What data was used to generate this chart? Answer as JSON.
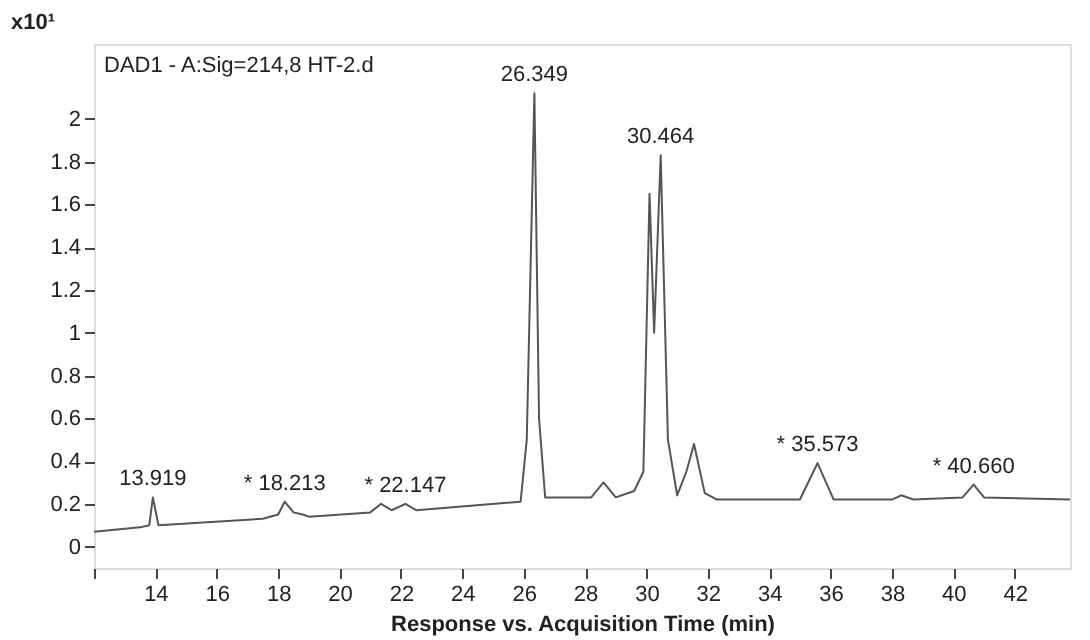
{
  "chart_data": {
    "type": "line",
    "title": "DAD1 - A:Sig=214,8 HT-2.d",
    "xlabel": "Response vs. Acquisition Time (min)",
    "ylabel": "x10¹",
    "xlim": [
      12.0,
      43.8
    ],
    "xticks": [
      {
        "value": 12,
        "label": null
      },
      14,
      16,
      18,
      20,
      22,
      24,
      26,
      28,
      30,
      32,
      34,
      36,
      38,
      40,
      42
    ],
    "ylim": [
      -0.1,
      2.35
    ],
    "yticks": [
      0,
      0.2,
      0.4,
      0.6,
      0.8,
      1,
      1.2,
      1.4,
      1.6,
      1.8,
      2
    ],
    "grid": false,
    "marker": "none",
    "line_style": "solid",
    "series": [
      {
        "color": "#555555",
        "x": [
          12.0,
          13.5,
          13.8,
          13.919,
          14.1,
          17.5,
          18.0,
          18.213,
          18.5,
          18.8,
          19.0,
          21.0,
          21.35,
          21.7,
          22.147,
          22.5,
          25.9,
          26.1,
          26.2,
          26.349,
          26.5,
          26.7,
          28.2,
          28.6,
          29.0,
          29.6,
          29.9,
          30.1,
          30.25,
          30.464,
          30.7,
          31.0,
          31.3,
          31.55,
          31.9,
          32.3,
          35.0,
          35.573,
          36.1,
          38.0,
          38.3,
          38.7,
          40.3,
          40.66,
          41.0,
          43.8
        ],
        "values": [
          0.07,
          0.09,
          0.1,
          0.23,
          0.1,
          0.13,
          0.15,
          0.21,
          0.16,
          0.15,
          0.14,
          0.16,
          0.2,
          0.17,
          0.2,
          0.17,
          0.21,
          0.5,
          1.15,
          2.12,
          0.6,
          0.23,
          0.23,
          0.3,
          0.23,
          0.26,
          0.35,
          1.65,
          1.0,
          1.83,
          0.5,
          0.24,
          0.35,
          0.48,
          0.25,
          0.22,
          0.22,
          0.39,
          0.22,
          0.22,
          0.24,
          0.22,
          0.23,
          0.29,
          0.23,
          0.22
        ]
      }
    ],
    "annotations": [
      {
        "text": "13.919",
        "x": 13.919,
        "y": 0.23
      },
      {
        "text": "* 18.213",
        "x": 18.213,
        "y": 0.21
      },
      {
        "text": "* 22.147",
        "x": 22.147,
        "y": 0.2
      },
      {
        "text": "26.349",
        "x": 26.349,
        "y": 2.12
      },
      {
        "text": "30.464",
        "x": 30.464,
        "y": 1.83
      },
      {
        "text": "* 35.573",
        "x": 35.573,
        "y": 0.39
      },
      {
        "text": "* 40.660",
        "x": 40.66,
        "y": 0.29
      }
    ]
  }
}
